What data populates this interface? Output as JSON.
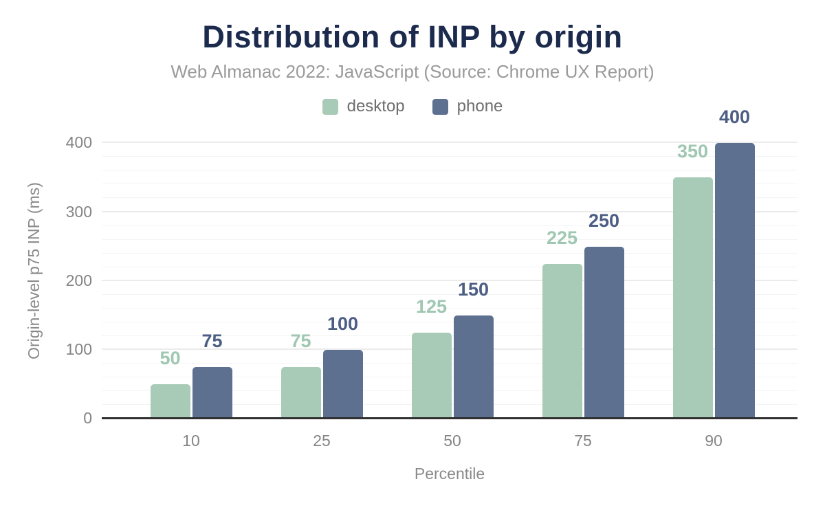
{
  "header": {
    "title": "Distribution of INP by origin",
    "subtitle": "Web Almanac 2022: JavaScript (Source: Chrome UX Report)"
  },
  "legend": {
    "position": "top",
    "items": [
      {
        "label": "desktop",
        "color": "#a8cbb8"
      },
      {
        "label": "phone",
        "color": "#5e7090"
      }
    ]
  },
  "chart_data": {
    "type": "bar",
    "title": "Distribution of INP by origin",
    "subtitle": "Web Almanac 2022: JavaScript (Source: Chrome UX Report)",
    "categories": [
      "10",
      "25",
      "50",
      "75",
      "90"
    ],
    "series": [
      {
        "name": "desktop",
        "values": [
          50,
          75,
          125,
          225,
          350
        ],
        "bar_color": "#a8cbb8",
        "label_color": "#9fc7b2"
      },
      {
        "name": "phone",
        "values": [
          75,
          100,
          150,
          250,
          400
        ],
        "bar_color": "#5e7090",
        "label_color": "#4c5e84"
      }
    ],
    "xlabel": "Percentile",
    "ylabel": "Origin-level p75 INP (ms)",
    "ylim": [
      0,
      400
    ],
    "yticks": [
      0,
      100,
      200,
      300,
      400
    ],
    "minor_grid_step": 20,
    "grid": true,
    "legend_position": "top",
    "data_labels": true,
    "colors": {
      "title": "#1c2b4d",
      "subtitle": "#9a9a9a",
      "tick_text": "#848484",
      "axis_title_text": "#8a8a8a",
      "axis_line": "#303030",
      "major_grid": "#ebebeb",
      "minor_grid": "#f4f4f4",
      "background": "#ffffff"
    }
  }
}
